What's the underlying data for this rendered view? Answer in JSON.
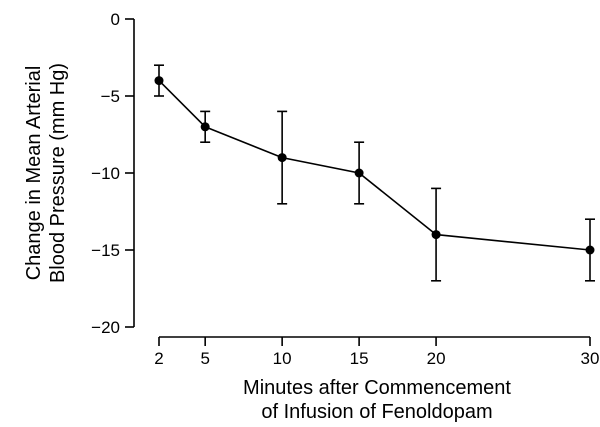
{
  "chart_data": {
    "type": "line",
    "xlabel_lines": [
      "Minutes after Commencement",
      "of Infusion of Fenoldopam"
    ],
    "ylabel_lines": [
      "Change in Mean Arterial",
      "Blood Pressure (mm Hg)"
    ],
    "x_ticks": [
      2,
      5,
      10,
      15,
      20,
      30
    ],
    "y_ticks": [
      0,
      -5,
      -10,
      -15,
      -20
    ],
    "y_tick_labels": [
      "0",
      "−5",
      "−10",
      "−15",
      "−20"
    ],
    "xlim": [
      0,
      30
    ],
    "ylim": [
      -20,
      0
    ],
    "grid": false,
    "series": [
      {
        "x": [
          2,
          5,
          10,
          15,
          20,
          30
        ],
        "y": [
          -4,
          -7,
          -9,
          -10,
          -14,
          -15
        ],
        "err_low": [
          -5,
          -8,
          -12,
          -12,
          -17,
          -17
        ],
        "err_high": [
          -3,
          -6,
          -6,
          -8,
          -11,
          -13
        ]
      }
    ]
  }
}
